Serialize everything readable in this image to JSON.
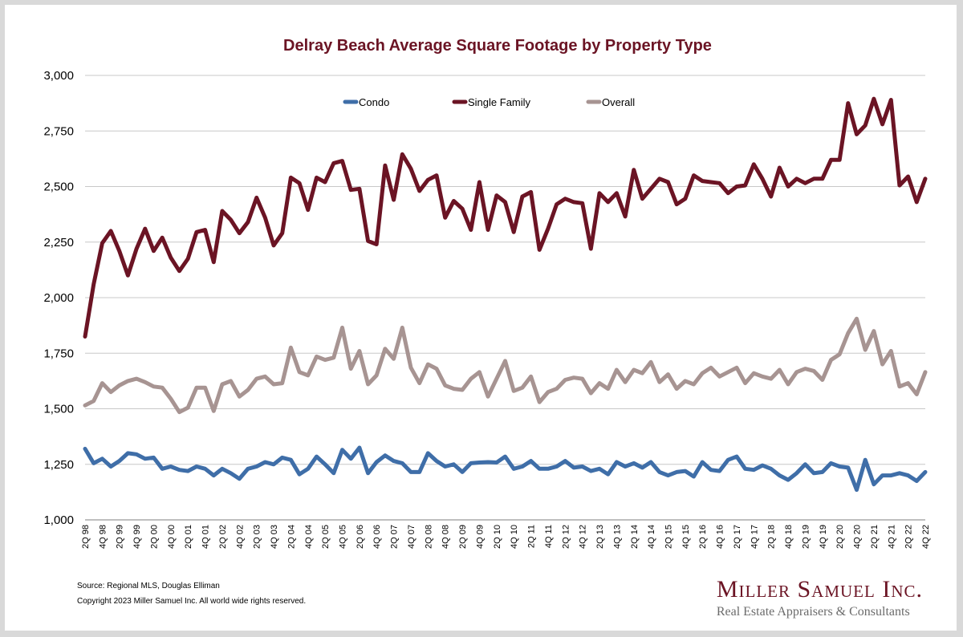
{
  "chart_data": {
    "type": "line",
    "title": "Delray Beach Average Square Footage by Property Type",
    "xlabel": "",
    "ylabel": "",
    "ylim": [
      1000,
      3000
    ],
    "yticks": [
      "1,000",
      "1,250",
      "1,500",
      "1,750",
      "2,000",
      "2,250",
      "2,500",
      "2,750",
      "3,000"
    ],
    "grid": true,
    "legend_position": "top",
    "x_tick_labels": [
      "2Q 98",
      "4Q 98",
      "2Q 99",
      "4Q 99",
      "2Q 00",
      "4Q 00",
      "2Q 01",
      "4Q 01",
      "2Q 02",
      "4Q 02",
      "2Q 03",
      "4Q 03",
      "2Q 04",
      "4Q 04",
      "2Q 05",
      "4Q 05",
      "2Q 06",
      "4Q 06",
      "2Q 07",
      "4Q 07",
      "2Q 08",
      "4Q 08",
      "2Q 09",
      "4Q 09",
      "2Q 10",
      "4Q 10",
      "2Q 11",
      "4Q 11",
      "2Q 12",
      "4Q 12",
      "2Q 13",
      "4Q 13",
      "2Q 14",
      "4Q 14",
      "2Q 15",
      "4Q 15",
      "2Q 16",
      "4Q 16",
      "2Q 17",
      "4Q 17",
      "2Q 18",
      "4Q 18",
      "2Q 19",
      "4Q 19",
      "2Q 20",
      "4Q 20",
      "2Q 21",
      "4Q 21",
      "2Q 22",
      "4Q 22"
    ],
    "series": [
      {
        "name": "Condo",
        "color": "#3f6ea8",
        "values": [
          1320,
          1255,
          1275,
          1240,
          1265,
          1300,
          1295,
          1275,
          1280,
          1230,
          1240,
          1225,
          1220,
          1240,
          1230,
          1200,
          1230,
          1210,
          1185,
          1230,
          1240,
          1260,
          1250,
          1280,
          1270,
          1205,
          1230,
          1285,
          1250,
          1210,
          1315,
          1275,
          1325,
          1210,
          1260,
          1290,
          1265,
          1255,
          1215,
          1215,
          1300,
          1265,
          1240,
          1250,
          1215,
          1255,
          1258,
          1260,
          1258,
          1285,
          1230,
          1240,
          1265,
          1230,
          1230,
          1240,
          1265,
          1235,
          1240,
          1220,
          1230,
          1205,
          1260,
          1240,
          1255,
          1235,
          1260,
          1215,
          1200,
          1215,
          1220,
          1195,
          1260,
          1225,
          1220,
          1270,
          1285,
          1230,
          1225,
          1245,
          1230,
          1200,
          1180,
          1210,
          1250,
          1210,
          1215,
          1255,
          1240,
          1235,
          1135,
          1270,
          1160,
          1200,
          1200,
          1210,
          1200,
          1175,
          1215
        ]
      },
      {
        "name": "Single Family",
        "color": "#6b1424",
        "values": [
          1825,
          2060,
          2245,
          2300,
          2210,
          2100,
          2220,
          2310,
          2210,
          2270,
          2180,
          2120,
          2175,
          2295,
          2305,
          2160,
          2390,
          2350,
          2290,
          2340,
          2450,
          2360,
          2235,
          2290,
          2540,
          2515,
          2395,
          2540,
          2520,
          2605,
          2615,
          2485,
          2490,
          2255,
          2240,
          2595,
          2440,
          2645,
          2580,
          2480,
          2530,
          2550,
          2360,
          2435,
          2400,
          2305,
          2520,
          2305,
          2460,
          2430,
          2295,
          2455,
          2475,
          2215,
          2310,
          2420,
          2445,
          2430,
          2425,
          2220,
          2470,
          2430,
          2470,
          2365,
          2575,
          2445,
          2490,
          2535,
          2520,
          2420,
          2445,
          2550,
          2525,
          2520,
          2515,
          2470,
          2500,
          2505,
          2600,
          2535,
          2455,
          2585,
          2500,
          2535,
          2515,
          2535,
          2535,
          2620,
          2620,
          2875,
          2735,
          2775,
          2895,
          2780,
          2890,
          2505,
          2545,
          2430,
          2535
        ]
      },
      {
        "name": "Overall",
        "color": "#a79492",
        "values": [
          1515,
          1535,
          1615,
          1575,
          1605,
          1625,
          1635,
          1620,
          1600,
          1595,
          1545,
          1485,
          1505,
          1595,
          1595,
          1490,
          1610,
          1625,
          1555,
          1585,
          1635,
          1645,
          1610,
          1615,
          1775,
          1665,
          1650,
          1735,
          1720,
          1730,
          1865,
          1680,
          1760,
          1610,
          1650,
          1770,
          1725,
          1865,
          1685,
          1615,
          1700,
          1680,
          1605,
          1590,
          1585,
          1635,
          1665,
          1555,
          1635,
          1715,
          1580,
          1595,
          1645,
          1530,
          1575,
          1590,
          1630,
          1640,
          1635,
          1570,
          1615,
          1590,
          1675,
          1620,
          1675,
          1660,
          1710,
          1620,
          1655,
          1590,
          1625,
          1610,
          1660,
          1685,
          1645,
          1665,
          1685,
          1615,
          1660,
          1645,
          1635,
          1675,
          1610,
          1665,
          1680,
          1670,
          1630,
          1720,
          1745,
          1840,
          1905,
          1765,
          1850,
          1700,
          1760,
          1600,
          1615,
          1565,
          1665
        ]
      }
    ]
  },
  "footer": {
    "source": "Source: Regional MLS, Douglas Elliman",
    "copyright": "Copyright 2023 Miller Samuel Inc.  All world wide rights reserved.",
    "brand_name": "Miller Samuel Inc.",
    "brand_tagline": "Real Estate Appraisers & Consultants"
  }
}
